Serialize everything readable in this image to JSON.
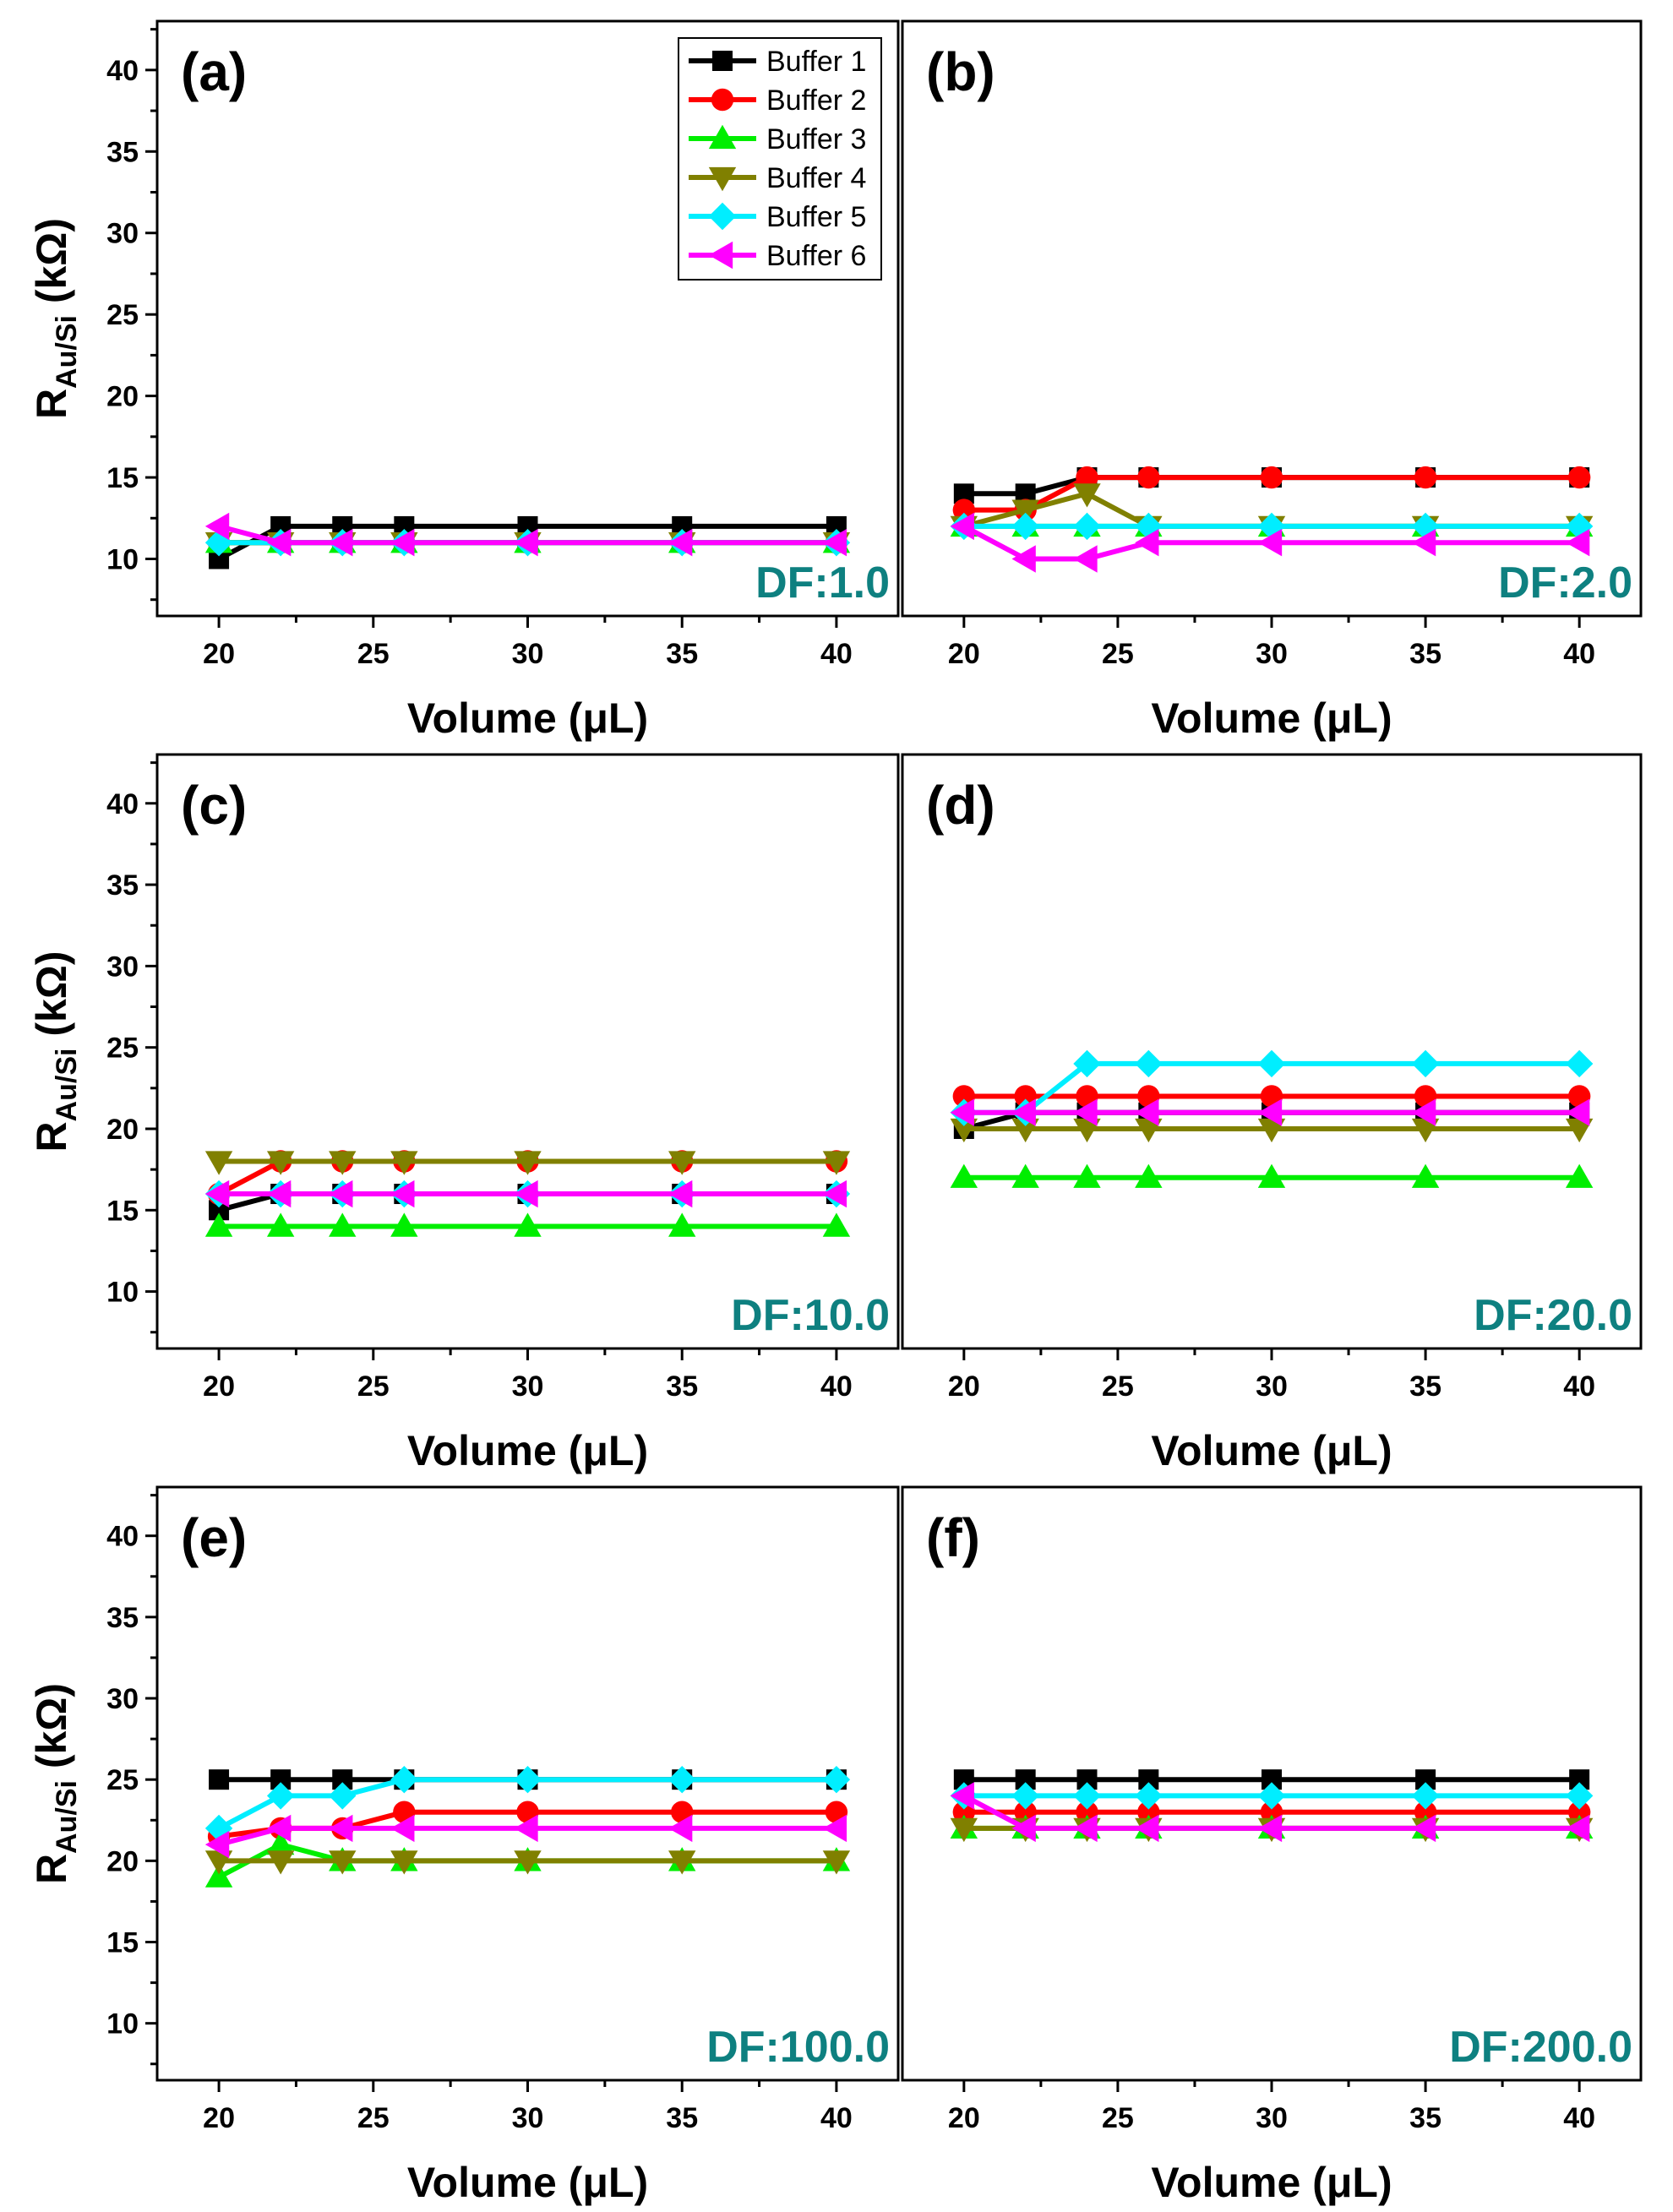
{
  "chart_data": {
    "type": "line",
    "x_label": "Volume (μL)",
    "y_label_main": "R",
    "y_label_sub": "Au/Si",
    "y_label_unit": " (kΩ)",
    "x": [
      20,
      22,
      24,
      26,
      30,
      35,
      40
    ],
    "x_ticks": [
      20,
      25,
      30,
      35,
      40
    ],
    "y_ticks": [
      10,
      15,
      20,
      25,
      30,
      35,
      40
    ],
    "xlim": [
      18,
      42
    ],
    "ylim": [
      6.5,
      43
    ],
    "legend": [
      {
        "name": "Buffer 1",
        "color": "#000000",
        "marker": "square"
      },
      {
        "name": "Buffer 2",
        "color": "#ff0000",
        "marker": "circle"
      },
      {
        "name": "Buffer 3",
        "color": "#00ee00",
        "marker": "triangle-up"
      },
      {
        "name": "Buffer 4",
        "color": "#808000",
        "marker": "triangle-down"
      },
      {
        "name": "Buffer 5",
        "color": "#00eeff",
        "marker": "diamond"
      },
      {
        "name": "Buffer 6",
        "color": "#ff00ff",
        "marker": "triangle-left"
      }
    ],
    "panels": [
      {
        "label": "(a)",
        "df": "DF:1.0",
        "series": [
          {
            "name": "Buffer 1",
            "values": [
              10,
              12,
              12,
              12,
              12,
              12,
              12
            ]
          },
          {
            "name": "Buffer 2",
            "values": [
              11,
              11,
              11,
              11,
              11,
              11,
              11
            ]
          },
          {
            "name": "Buffer 3",
            "values": [
              11,
              11,
              11,
              11,
              11,
              11,
              11
            ]
          },
          {
            "name": "Buffer 4",
            "values": [
              11,
              11,
              11,
              11,
              11,
              11,
              11
            ]
          },
          {
            "name": "Buffer 5",
            "values": [
              11,
              11,
              11,
              11,
              11,
              11,
              11
            ]
          },
          {
            "name": "Buffer 6",
            "values": [
              12,
              11,
              11,
              11,
              11,
              11,
              11
            ]
          }
        ]
      },
      {
        "label": "(b)",
        "df": "DF:2.0",
        "series": [
          {
            "name": "Buffer 1",
            "values": [
              14,
              14,
              15,
              15,
              15,
              15,
              15
            ]
          },
          {
            "name": "Buffer 2",
            "values": [
              13,
              13,
              15,
              15,
              15,
              15,
              15
            ]
          },
          {
            "name": "Buffer 3",
            "values": [
              12,
              12,
              12,
              12,
              12,
              12,
              12
            ]
          },
          {
            "name": "Buffer 4",
            "values": [
              12,
              13,
              14,
              12,
              12,
              12,
              12
            ]
          },
          {
            "name": "Buffer 5",
            "values": [
              12,
              12,
              12,
              12,
              12,
              12,
              12
            ]
          },
          {
            "name": "Buffer 6",
            "values": [
              12,
              10,
              10,
              11,
              11,
              11,
              11
            ]
          }
        ]
      },
      {
        "label": "(c)",
        "df": "DF:10.0",
        "series": [
          {
            "name": "Buffer 1",
            "values": [
              15,
              16,
              16,
              16,
              16,
              16,
              16
            ]
          },
          {
            "name": "Buffer 2",
            "values": [
              16,
              18,
              18,
              18,
              18,
              18,
              18
            ]
          },
          {
            "name": "Buffer 3",
            "values": [
              14,
              14,
              14,
              14,
              14,
              14,
              14
            ]
          },
          {
            "name": "Buffer 4",
            "values": [
              18,
              18,
              18,
              18,
              18,
              18,
              18
            ]
          },
          {
            "name": "Buffer 5",
            "values": [
              16,
              16,
              16,
              16,
              16,
              16,
              16
            ]
          },
          {
            "name": "Buffer 6",
            "values": [
              16,
              16,
              16,
              16,
              16,
              16,
              16
            ]
          }
        ]
      },
      {
        "label": "(d)",
        "df": "DF:20.0",
        "series": [
          {
            "name": "Buffer 1",
            "values": [
              20,
              21,
              21,
              21,
              21,
              21,
              21
            ]
          },
          {
            "name": "Buffer 2",
            "values": [
              22,
              22,
              22,
              22,
              22,
              22,
              22
            ]
          },
          {
            "name": "Buffer 3",
            "values": [
              17,
              17,
              17,
              17,
              17,
              17,
              17
            ]
          },
          {
            "name": "Buffer 4",
            "values": [
              20,
              20,
              20,
              20,
              20,
              20,
              20
            ]
          },
          {
            "name": "Buffer 5",
            "values": [
              21,
              21,
              24,
              24,
              24,
              24,
              24
            ]
          },
          {
            "name": "Buffer 6",
            "values": [
              21,
              21,
              21,
              21,
              21,
              21,
              21
            ]
          }
        ]
      },
      {
        "label": "(e)",
        "df": "DF:100.0",
        "series": [
          {
            "name": "Buffer 1",
            "values": [
              25,
              25,
              25,
              25,
              25,
              25,
              25
            ]
          },
          {
            "name": "Buffer 2",
            "values": [
              21.5,
              22,
              22,
              23,
              23,
              23,
              23
            ]
          },
          {
            "name": "Buffer 3",
            "values": [
              19,
              21,
              20,
              20,
              20,
              20,
              20
            ]
          },
          {
            "name": "Buffer 4",
            "values": [
              20,
              20,
              20,
              20,
              20,
              20,
              20
            ]
          },
          {
            "name": "Buffer 5",
            "values": [
              22,
              24,
              24,
              25,
              25,
              25,
              25
            ]
          },
          {
            "name": "Buffer 6",
            "values": [
              21,
              22,
              22,
              22,
              22,
              22,
              22
            ]
          }
        ]
      },
      {
        "label": "(f)",
        "df": "DF:200.0",
        "series": [
          {
            "name": "Buffer 1",
            "values": [
              25,
              25,
              25,
              25,
              25,
              25,
              25
            ]
          },
          {
            "name": "Buffer 2",
            "values": [
              23,
              23,
              23,
              23,
              23,
              23,
              23
            ]
          },
          {
            "name": "Buffer 3",
            "values": [
              22,
              22,
              22,
              22,
              22,
              22,
              22
            ]
          },
          {
            "name": "Buffer 4",
            "values": [
              22,
              22,
              22,
              22,
              22,
              22,
              22
            ]
          },
          {
            "name": "Buffer 5",
            "values": [
              24,
              24,
              24,
              24,
              24,
              24,
              24
            ]
          },
          {
            "name": "Buffer 6",
            "values": [
              24,
              22,
              22,
              22,
              22,
              22,
              22
            ]
          }
        ]
      }
    ]
  }
}
